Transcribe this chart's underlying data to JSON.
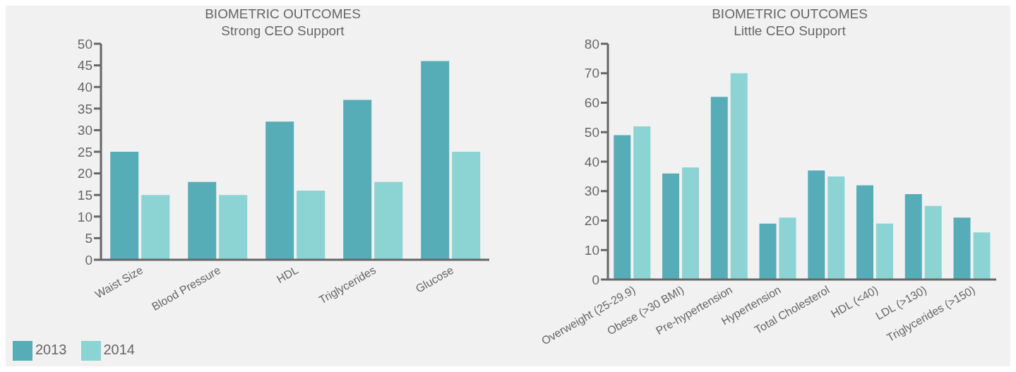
{
  "chart_data": [
    {
      "type": "bar",
      "title": "BIOMETRIC OUTCOMES",
      "subtitle": "Strong CEO Support",
      "categories": [
        "Waist Size",
        "Blood Pressure",
        "HDL",
        "Triglycerides",
        "Glucose"
      ],
      "series": [
        {
          "name": "2013",
          "color": "#56adb8",
          "values": [
            25,
            18,
            32,
            37,
            46
          ]
        },
        {
          "name": "2014",
          "color": "#8cd3d3",
          "values": [
            15,
            15,
            16,
            18,
            25
          ]
        }
      ],
      "ylim": [
        0,
        50
      ],
      "yticks": [
        0,
        5,
        10,
        15,
        20,
        25,
        30,
        35,
        40,
        45,
        50
      ],
      "grid": false,
      "legend": "bottom left"
    },
    {
      "type": "bar",
      "title": "BIOMETRIC OUTCOMES",
      "subtitle": "Little CEO Support",
      "categories": [
        "Overweight (25-29.9)",
        "Obese (>30 BMI)",
        "Pre-hypertension",
        "Hypertension",
        "Total Cholesterol",
        "HDL (<40)",
        "LDL (>130)",
        "Triglycerides (>150)"
      ],
      "series": [
        {
          "color": "#56adb8",
          "values": [
            49,
            36,
            62,
            19,
            37,
            32,
            29,
            21
          ]
        },
        {
          "color": "#8cd3d3",
          "values": [
            52,
            38,
            70,
            21,
            35,
            19,
            25,
            16
          ]
        }
      ],
      "ylim": [
        0,
        80
      ],
      "yticks": [
        0,
        10,
        20,
        30,
        40,
        50,
        60,
        70,
        80
      ],
      "grid": false
    }
  ]
}
